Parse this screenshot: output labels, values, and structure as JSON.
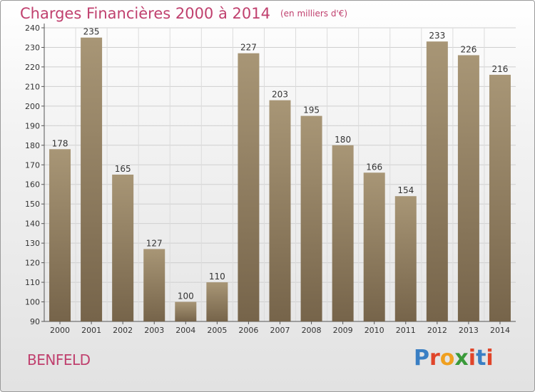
{
  "title": "Charges Financières 2000 à 2014",
  "unit_note": "(en milliers d'€)",
  "commune": "BENFELD",
  "logo": {
    "text": "Proxiti",
    "letter_colors": [
      "#3a7fc4",
      "#e0452a",
      "#f0a020",
      "#3a9a3a",
      "#e0452a",
      "#3a7fc4",
      "#e0452a"
    ]
  },
  "colors": {
    "title": "#c0406e",
    "bar_top": "#a89676",
    "bar_bottom": "#76644a"
  },
  "chart_data": {
    "type": "bar",
    "title": "Charges Financières 2000 à 2014",
    "subtitle": "(en milliers d'€)",
    "categories": [
      "2000",
      "2001",
      "2002",
      "2003",
      "2004",
      "2005",
      "2006",
      "2007",
      "2008",
      "2009",
      "2010",
      "2011",
      "2012",
      "2013",
      "2014"
    ],
    "values": [
      178,
      235,
      165,
      127,
      100,
      110,
      227,
      203,
      195,
      180,
      166,
      154,
      233,
      226,
      216
    ],
    "ylim": [
      90,
      240
    ],
    "yticks": [
      90,
      100,
      110,
      120,
      130,
      140,
      150,
      160,
      170,
      180,
      190,
      200,
      210,
      220,
      230,
      240
    ],
    "grid": true,
    "xlabel": "",
    "ylabel": ""
  }
}
